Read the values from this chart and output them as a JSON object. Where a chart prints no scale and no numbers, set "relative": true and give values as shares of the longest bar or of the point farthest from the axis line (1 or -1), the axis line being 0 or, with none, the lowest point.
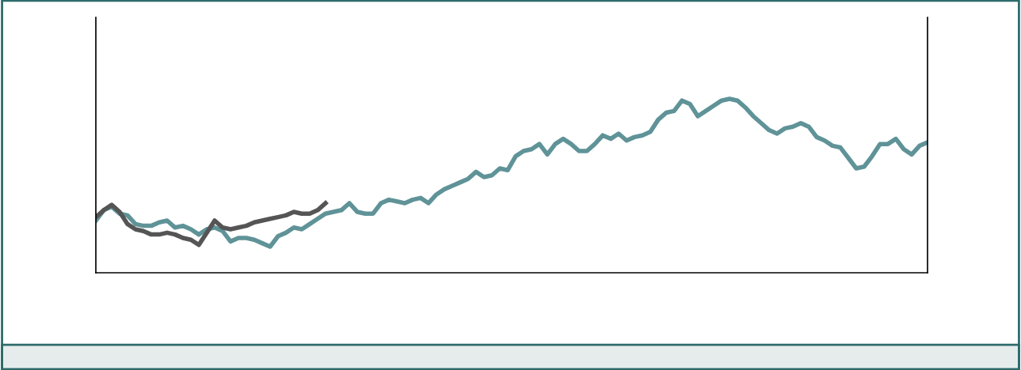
{
  "chart_data": {
    "type": "line",
    "relative": true,
    "categories": [
      null,
      null,
      null,
      null,
      null,
      null,
      null,
      null,
      null,
      null,
      null,
      null,
      null,
      null,
      null,
      null,
      null,
      null,
      null,
      null,
      null,
      null,
      null,
      null,
      null,
      null,
      null,
      null,
      null,
      null,
      null,
      null,
      null,
      null,
      null,
      null,
      null,
      null,
      null,
      null,
      null,
      null,
      null,
      null,
      null,
      null,
      null,
      null,
      null,
      null,
      null,
      null,
      null,
      null,
      null,
      null,
      null,
      null,
      null,
      null,
      null,
      null,
      null,
      null,
      null,
      null,
      null,
      null,
      null,
      null,
      null,
      null,
      null,
      null,
      null,
      null,
      null,
      null,
      null,
      null,
      null,
      null,
      null,
      null,
      null,
      null,
      null,
      null,
      null,
      null,
      null,
      null,
      null,
      null,
      null,
      null,
      null,
      null,
      null,
      null,
      null,
      null,
      null,
      null,
      null,
      null
    ],
    "grid": false,
    "marker": "none",
    "line_style": "solid",
    "series": [
      {
        "color": "#5f9398",
        "values": [
          0.3,
          0.36,
          0.38,
          0.34,
          0.33,
          0.28,
          0.27,
          0.27,
          0.29,
          0.3,
          0.26,
          0.27,
          0.25,
          0.22,
          0.25,
          0.26,
          0.24,
          0.18,
          0.2,
          0.2,
          0.19,
          0.17,
          0.15,
          0.21,
          0.23,
          0.26,
          0.25,
          0.28,
          0.31,
          0.34,
          0.35,
          0.36,
          0.4,
          0.35,
          0.34,
          0.34,
          0.4,
          0.42,
          0.41,
          0.4,
          0.42,
          0.43,
          0.4,
          0.45,
          0.48,
          0.5,
          0.52,
          0.54,
          0.58,
          0.55,
          0.56,
          0.6,
          0.59,
          0.67,
          0.7,
          0.71,
          0.74,
          0.68,
          0.74,
          0.77,
          0.74,
          0.7,
          0.7,
          0.74,
          0.79,
          0.77,
          0.8,
          0.76,
          0.78,
          0.79,
          0.81,
          0.88,
          0.92,
          0.93,
          0.99,
          0.97,
          0.9,
          0.93,
          0.96,
          0.99,
          1,
          0.99,
          0.95,
          0.9,
          0.86,
          0.82,
          0.8,
          0.83,
          0.84,
          0.86,
          0.84,
          0.78,
          0.76,
          0.73,
          0.72,
          0.66,
          0.6,
          0.61,
          0.67,
          0.74,
          0.74,
          0.77,
          0.71,
          0.68,
          0.73,
          0.75
        ]
      },
      {
        "color": "#555555",
        "values": [
          0.32,
          0.36,
          0.39,
          0.35,
          0.28,
          0.25,
          0.24,
          0.22,
          0.22,
          0.23,
          0.22,
          0.2,
          0.19,
          0.16,
          0.23,
          0.3,
          0.26,
          0.25,
          0.26,
          0.27,
          0.29,
          0.3,
          0.31,
          0.32,
          0.33,
          0.35,
          0.34,
          0.34,
          0.36,
          0.4,
          null,
          null,
          null,
          null,
          null,
          null,
          null,
          null,
          null,
          null,
          null,
          null,
          null,
          null,
          null,
          null,
          null,
          null,
          null,
          null,
          null,
          null,
          null,
          null,
          null,
          null,
          null,
          null,
          null,
          null,
          null,
          null,
          null,
          null,
          null,
          null,
          null,
          null,
          null,
          null,
          null,
          null,
          null,
          null,
          null,
          null,
          null,
          null,
          null,
          null,
          null,
          null,
          null,
          null,
          null,
          null,
          null,
          null,
          null,
          null,
          null,
          null,
          null,
          null,
          null,
          null,
          null,
          null,
          null,
          null,
          null,
          null,
          null,
          null,
          null,
          null
        ]
      }
    ]
  }
}
